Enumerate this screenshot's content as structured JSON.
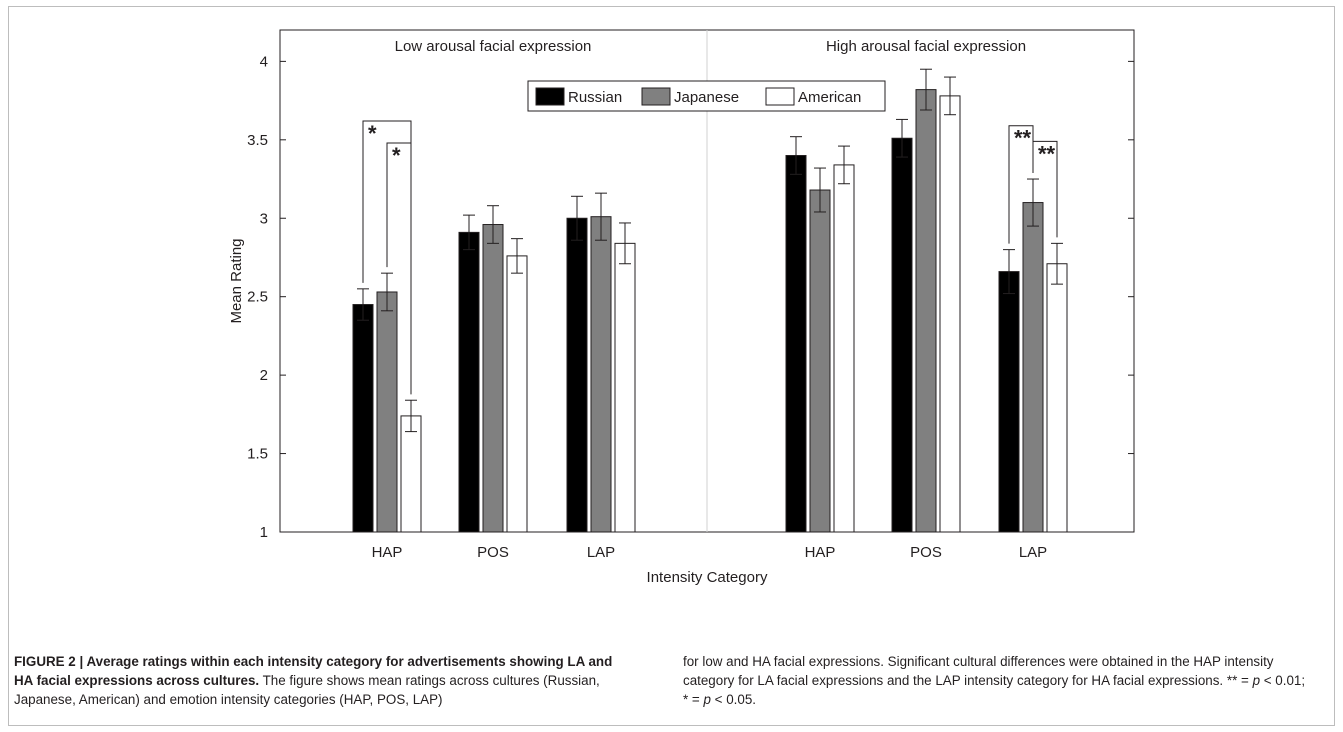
{
  "chart_data": {
    "type": "bar",
    "ylabel": "Mean Rating",
    "xlabel": "Intensity Category",
    "ylim": [
      1,
      4.2
    ],
    "yticks": [
      "1",
      "1.5",
      "2",
      "2.5",
      "3",
      "3.5",
      "4"
    ],
    "grid": false,
    "legend_position": "top-center",
    "panels": [
      {
        "title": "Low arousal facial expression",
        "categories": [
          "HAP",
          "POS",
          "LAP"
        ],
        "series": [
          {
            "name": "Russian",
            "values": [
              2.45,
              2.91,
              3.0
            ],
            "errors": [
              0.1,
              0.11,
              0.14
            ]
          },
          {
            "name": "Japanese",
            "values": [
              2.53,
              2.96,
              3.01
            ],
            "errors": [
              0.12,
              0.12,
              0.15
            ]
          },
          {
            "name": "American",
            "values": [
              1.74,
              2.76,
              2.84
            ],
            "errors": [
              0.1,
              0.11,
              0.13
            ]
          }
        ],
        "significance": [
          {
            "category": "HAP",
            "pair": [
              "Russian",
              "American"
            ],
            "label": "*"
          },
          {
            "category": "HAP",
            "pair": [
              "Japanese",
              "American"
            ],
            "label": "*"
          }
        ]
      },
      {
        "title": "High arousal facial expression",
        "categories": [
          "HAP",
          "POS",
          "LAP"
        ],
        "series": [
          {
            "name": "Russian",
            "values": [
              3.4,
              3.51,
              2.66
            ],
            "errors": [
              0.12,
              0.12,
              0.14
            ]
          },
          {
            "name": "Japanese",
            "values": [
              3.18,
              3.82,
              3.1
            ],
            "errors": [
              0.14,
              0.13,
              0.15
            ]
          },
          {
            "name": "American",
            "values": [
              3.34,
              3.78,
              2.71
            ],
            "errors": [
              0.12,
              0.12,
              0.13
            ]
          }
        ],
        "significance": [
          {
            "category": "LAP",
            "pair": [
              "Russian",
              "Japanese"
            ],
            "label": "**"
          },
          {
            "category": "LAP",
            "pair": [
              "Japanese",
              "American"
            ],
            "label": "**"
          }
        ]
      }
    ]
  },
  "series_colors": {
    "Russian": "#000000",
    "Japanese": "#808080",
    "American": "#ffffff"
  },
  "caption": {
    "left_bold": "FIGURE 2 | Average ratings within each intensity category for advertisements showing LA and HA facial expressions across cultures.",
    "left_rest": " The figure shows mean ratings across cultures (Russian, Japanese, American) and emotion intensity categories (HAP, POS, LAP)",
    "right_text": "for low and HA facial expressions. Significant cultural differences were obtained in the HAP intensity category for LA facial expressions and the LAP intensity category for HA facial expressions.",
    "note_double": "** = ",
    "note_double_p": "p",
    "note_double_val": " < 0.01;",
    "note_single": "* = ",
    "note_single_p": "p",
    "note_single_val": " < 0.05."
  }
}
